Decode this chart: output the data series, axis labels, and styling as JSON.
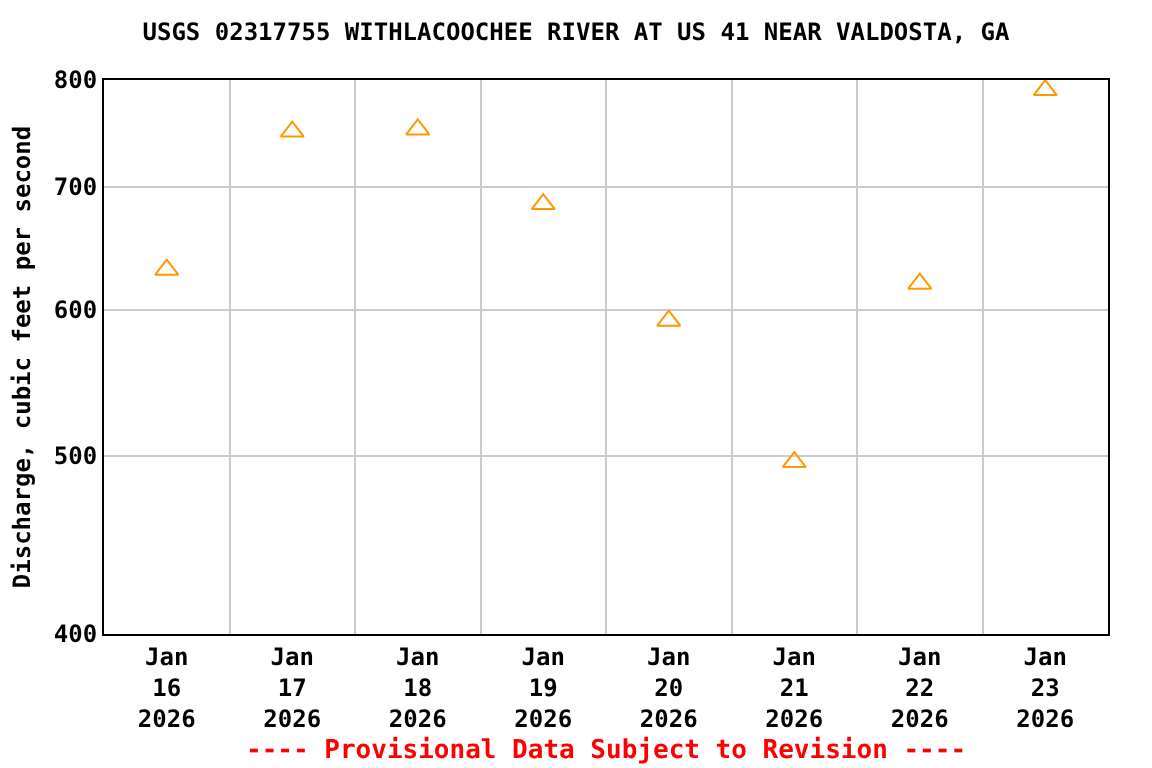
{
  "chart_data": {
    "type": "scatter",
    "title": "USGS 02317755 WITHLACOOCHEE RIVER AT US 41 NEAR VALDOSTA, GA",
    "ylabel": "Discharge, cubic feet per second",
    "categories": [
      "Jan\n16\n2026",
      "Jan\n17\n2026",
      "Jan\n18\n2026",
      "Jan\n19\n2026",
      "Jan\n20\n2026",
      "Jan\n21\n2026",
      "Jan\n22\n2026",
      "Jan\n23\n2026"
    ],
    "series": [
      {
        "color": "#ff9900",
        "values": [
          631,
          750,
          752,
          685,
          592,
          496,
          620,
          790
        ]
      }
    ],
    "log": "y",
    "ylim": [
      400,
      800
    ],
    "yticks": [
      400,
      500,
      600,
      700,
      800
    ],
    "grid": true,
    "marker": "triangle",
    "annotations": [
      {
        "text": "---- Provisional Data Subject to Revision ----"
      }
    ]
  }
}
